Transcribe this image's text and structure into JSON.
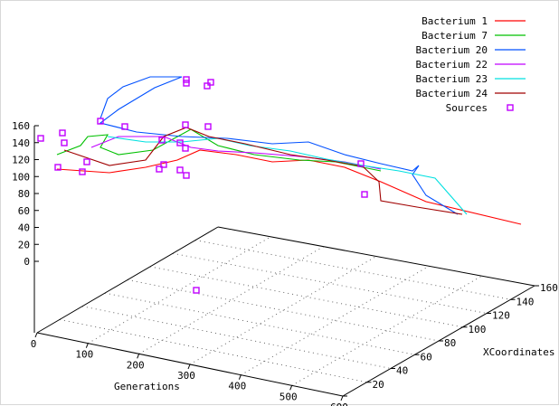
{
  "chart_data": {
    "type": "line",
    "projection": "3d",
    "title": "",
    "xlabel": "Generations",
    "ylabel": "XCoordinates",
    "zlabel": "",
    "xlim": [
      0,
      600
    ],
    "ylim": [
      0,
      160
    ],
    "zlim": [
      0,
      160
    ],
    "x_ticks": [
      "0",
      "100",
      "200",
      "300",
      "400",
      "500",
      "600"
    ],
    "y_ticks": [
      "0",
      "20",
      "40",
      "60",
      "80",
      "100",
      "120",
      "140",
      "160"
    ],
    "z_ticks": [
      "0",
      "20",
      "40",
      "60",
      "80",
      "100",
      "120",
      "140",
      "160"
    ],
    "grid": "on",
    "legend_position": "top-right",
    "series": [
      {
        "name": "Bacterium 1",
        "color": "#ff0000"
      },
      {
        "name": "Bacterium 7",
        "color": "#00c000"
      },
      {
        "name": "Bacterium 20",
        "color": "#0050ff"
      },
      {
        "name": "Bacterium 22",
        "color": "#c000ff"
      },
      {
        "name": "Bacterium 23",
        "color": "#00e0e0"
      },
      {
        "name": "Bacterium 24",
        "color": "#a00000"
      }
    ],
    "sources": {
      "name": "Sources",
      "color": "#c000ff",
      "marker": "square"
    }
  }
}
